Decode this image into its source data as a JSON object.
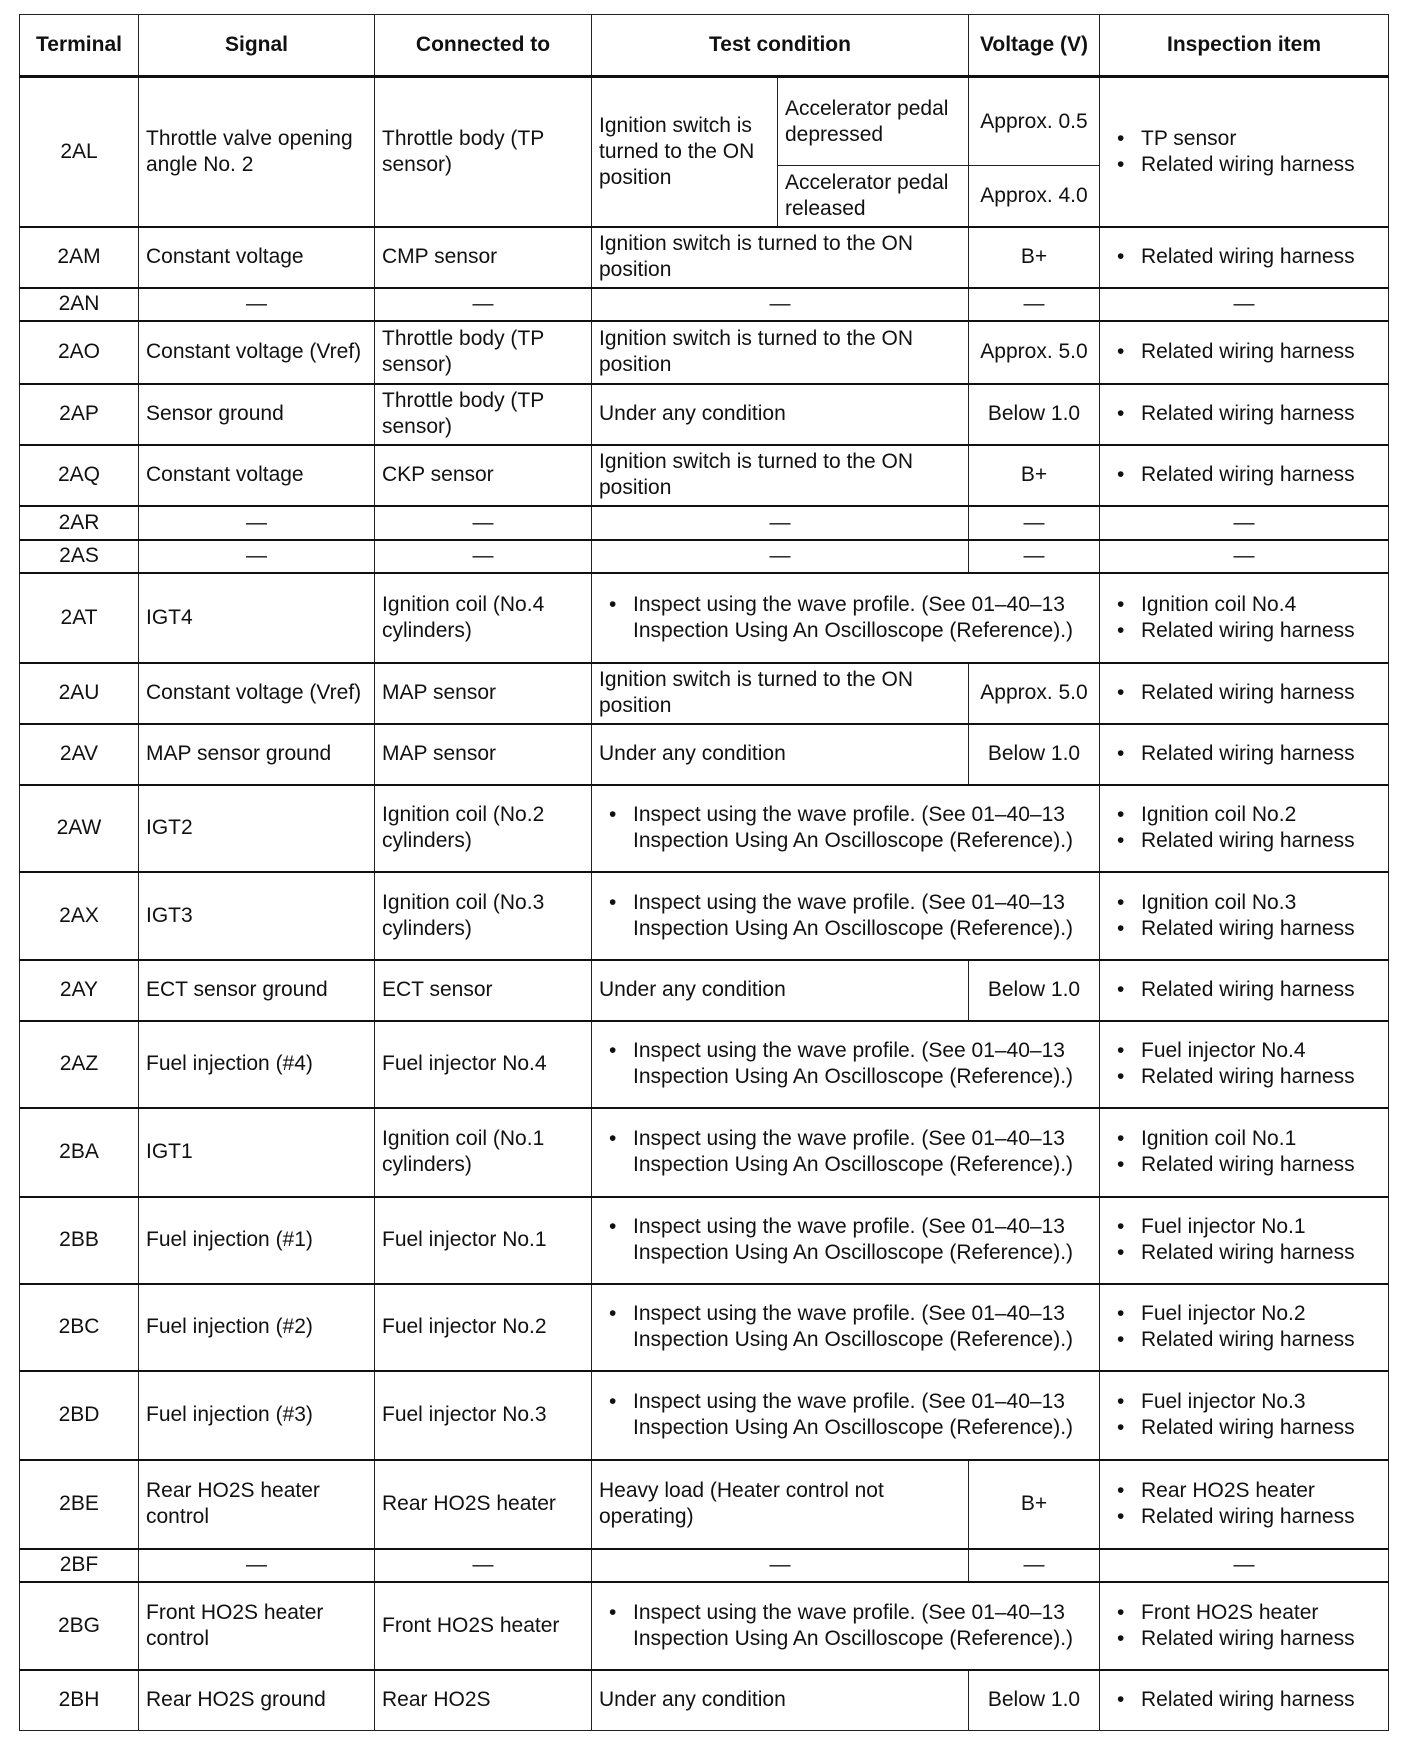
{
  "headers": [
    "Terminal",
    "Signal",
    "Connected to",
    "Test condition",
    "Voltage (V)",
    "Inspection item"
  ],
  "rows": [
    {
      "terminal": "2AL",
      "signal": "Throttle valve opening angle No. 2",
      "connected": "Throttle body (TP sensor)",
      "condition": "Ignition switch is turned to the ON position",
      "sub": [
        {
          "state": "Accelerator pedal depressed",
          "voltage": "Approx. 0.5"
        },
        {
          "state": "Accelerator pedal released",
          "voltage": "Approx. 4.0"
        }
      ],
      "inspection": [
        "TP sensor",
        "Related wiring harness"
      ]
    },
    {
      "terminal": "2AM",
      "signal": "Constant voltage",
      "connected": "CMP sensor",
      "condition": "Ignition switch is turned to the ON position",
      "voltage": "B+",
      "inspection": [
        "Related wiring harness"
      ]
    },
    {
      "terminal": "2AN",
      "signal": "—",
      "connected": "—",
      "condition": "—",
      "voltage": "—",
      "inspection_text": "—"
    },
    {
      "terminal": "2AO",
      "signal": "Constant voltage (Vref)",
      "connected": "Throttle body (TP sensor)",
      "condition": "Ignition switch is turned to the ON position",
      "voltage": "Approx. 5.0",
      "inspection": [
        "Related wiring harness"
      ]
    },
    {
      "terminal": "2AP",
      "signal": "Sensor ground",
      "connected": "Throttle body (TP sensor)",
      "condition": "Under any condition",
      "voltage": "Below 1.0",
      "inspection": [
        "Related wiring harness"
      ]
    },
    {
      "terminal": "2AQ",
      "signal": "Constant voltage",
      "connected": "CKP sensor",
      "condition": "Ignition switch is turned to the ON position",
      "voltage": "B+",
      "inspection": [
        "Related wiring harness"
      ]
    },
    {
      "terminal": "2AR",
      "signal": "—",
      "connected": "—",
      "condition": "—",
      "voltage": "—",
      "inspection_text": "—"
    },
    {
      "terminal": "2AS",
      "signal": "—",
      "connected": "—",
      "condition": "—",
      "voltage": "—",
      "inspection_text": "—"
    },
    {
      "terminal": "2AT",
      "signal": "IGT4",
      "connected": "Ignition coil (No.4 cylinders)",
      "wave": "Inspect using the wave profile. (See 01–40–13 Inspection Using An Oscilloscope (Reference).)",
      "inspection": [
        "Ignition coil No.4",
        "Related wiring harness"
      ]
    },
    {
      "terminal": "2AU",
      "signal": "Constant voltage (Vref)",
      "connected": "MAP sensor",
      "condition": "Ignition switch is turned to the ON position",
      "voltage": "Approx. 5.0",
      "inspection": [
        "Related wiring harness"
      ]
    },
    {
      "terminal": "2AV",
      "signal": "MAP sensor ground",
      "connected": "MAP sensor",
      "condition": "Under any condition",
      "voltage": "Below 1.0",
      "inspection": [
        "Related wiring harness"
      ]
    },
    {
      "terminal": "2AW",
      "signal": "IGT2",
      "connected": "Ignition coil (No.2 cylinders)",
      "wave": "Inspect using the wave profile. (See 01–40–13 Inspection Using An Oscilloscope (Reference).)",
      "inspection": [
        "Ignition coil No.2",
        "Related wiring harness"
      ]
    },
    {
      "terminal": "2AX",
      "signal": "IGT3",
      "connected": "Ignition coil (No.3 cylinders)",
      "wave": "Inspect using the wave profile. (See 01–40–13 Inspection Using An Oscilloscope (Reference).)",
      "inspection": [
        "Ignition coil No.3",
        "Related wiring harness"
      ]
    },
    {
      "terminal": "2AY",
      "signal": "ECT sensor ground",
      "connected": "ECT sensor",
      "condition": "Under any condition",
      "voltage": "Below 1.0",
      "inspection": [
        "Related wiring harness"
      ]
    },
    {
      "terminal": "2AZ",
      "signal": "Fuel injection (#4)",
      "connected": "Fuel injector No.4",
      "wave": "Inspect using the wave profile. (See 01–40–13 Inspection Using An Oscilloscope (Reference).)",
      "inspection": [
        "Fuel injector No.4",
        "Related wiring harness"
      ]
    },
    {
      "terminal": "2BA",
      "signal": "IGT1",
      "connected": "Ignition coil (No.1 cylinders)",
      "wave": "Inspect using the wave profile. (See 01–40–13 Inspection Using An Oscilloscope (Reference).)",
      "inspection": [
        "Ignition coil No.1",
        "Related wiring harness"
      ]
    },
    {
      "terminal": "2BB",
      "signal": "Fuel injection (#1)",
      "connected": "Fuel injector No.1",
      "wave": "Inspect using the wave profile. (See 01–40–13 Inspection Using An Oscilloscope (Reference).)",
      "inspection": [
        "Fuel injector No.1",
        "Related wiring harness"
      ]
    },
    {
      "terminal": "2BC",
      "signal": "Fuel injection (#2)",
      "connected": "Fuel injector No.2",
      "wave": "Inspect using the wave profile. (See 01–40–13 Inspection Using An Oscilloscope (Reference).)",
      "inspection": [
        "Fuel injector No.2",
        "Related wiring harness"
      ]
    },
    {
      "terminal": "2BD",
      "signal": "Fuel injection (#3)",
      "connected": "Fuel injector No.3",
      "wave": "Inspect using the wave profile. (See 01–40–13 Inspection Using An Oscilloscope (Reference).)",
      "inspection": [
        "Fuel injector No.3",
        "Related wiring harness"
      ]
    },
    {
      "terminal": "2BE",
      "signal": "Rear HO2S heater control",
      "connected": "Rear HO2S heater",
      "condition": "Heavy load (Heater control not operating)",
      "voltage": "B+",
      "inspection": [
        "Rear HO2S heater",
        "Related wiring harness"
      ]
    },
    {
      "terminal": "2BF",
      "signal": "—",
      "connected": "—",
      "condition": "—",
      "voltage": "—",
      "inspection_text": "—"
    },
    {
      "terminal": "2BG",
      "signal": "Front HO2S heater control",
      "connected": "Front HO2S heater",
      "wave": "Inspect using the wave profile. (See 01–40–13 Inspection Using An Oscilloscope (Reference).)",
      "inspection": [
        "Front HO2S heater",
        "Related wiring harness"
      ]
    },
    {
      "terminal": "2BH",
      "signal": "Rear HO2S ground",
      "connected": "Rear HO2S",
      "condition": "Under any condition",
      "voltage": "Below 1.0",
      "inspection": [
        "Related wiring harness"
      ]
    }
  ]
}
